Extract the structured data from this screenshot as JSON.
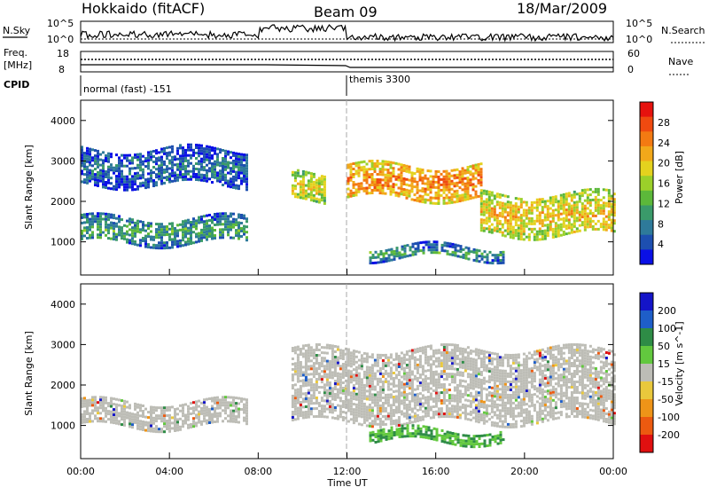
{
  "header": {
    "station": "Hokkaido (fitACF)",
    "beam": "Beam 09",
    "date": "18/Mar/2009"
  },
  "noise_panel": {
    "left_label": "N.Sky",
    "right_label": "N.Search",
    "left_ticks": [
      "10^5",
      "10^0"
    ],
    "right_ticks": [
      "10^5",
      "10^0"
    ]
  },
  "freq_panel": {
    "left_label_line1": "Freq.",
    "left_label_line2": "[MHz]",
    "right_label": "Nave",
    "left_ticks": [
      "18",
      "8"
    ],
    "right_ticks": [
      "60",
      "0"
    ]
  },
  "cpid": {
    "label": "CPID",
    "segments": [
      {
        "name": "normal (fast) -151",
        "start_hour": 0,
        "end_hour": 12
      },
      {
        "name": "themis 3300",
        "start_hour": 12,
        "end_hour": 24
      }
    ]
  },
  "x_axis": {
    "label": "Time UT",
    "ticks": [
      "00:00",
      "04:00",
      "08:00",
      "12:00",
      "16:00",
      "20:00",
      "00:00"
    ]
  },
  "colors": {
    "power_scale": [
      "#0a10e6",
      "#1d4fb0",
      "#2e7a9a",
      "#3a9a6a",
      "#5cb83a",
      "#9bd02a",
      "#e4d21e",
      "#f2a81a",
      "#f37a12",
      "#ef4a10",
      "#e6120e"
    ],
    "velocity_scale": [
      "#1414c8",
      "#1e5ec8",
      "#2e8c46",
      "#62c83e",
      "#bdbdb6",
      "#e9c83c",
      "#ee9418",
      "#ec5a10",
      "#e01010"
    ]
  },
  "chart_data": [
    {
      "type": "heatmap",
      "title": "Power",
      "ylabel": "Slant Range [km]",
      "xlabel": "Time UT",
      "x_range_hours": [
        0,
        24
      ],
      "ylim": [
        180,
        4500
      ],
      "yticks": [
        1000,
        2000,
        3000,
        4000
      ],
      "colorbar": {
        "label": "Power [dB]",
        "ticks": [
          4,
          8,
          12,
          16,
          20,
          24,
          28
        ],
        "range": [
          0,
          30
        ]
      },
      "echo_regions": [
        {
          "start_hour": 0.0,
          "end_hour": 7.5,
          "range_km_low": 1000,
          "range_km_high": 1600,
          "power_db": 10
        },
        {
          "start_hour": 0.0,
          "end_hour": 7.5,
          "range_km_low": 2400,
          "range_km_high": 3300,
          "power_db": 6
        },
        {
          "start_hour": 9.5,
          "end_hour": 11.0,
          "range_km_low": 2000,
          "range_km_high": 2700,
          "power_db": 18
        },
        {
          "start_hour": 12.0,
          "end_hour": 18.0,
          "range_km_low": 2100,
          "range_km_high": 2900,
          "power_db": 24
        },
        {
          "start_hour": 18.0,
          "end_hour": 24.0,
          "range_km_low": 1200,
          "range_km_high": 2200,
          "power_db": 20
        },
        {
          "start_hour": 13.0,
          "end_hour": 19.0,
          "range_km_low": 600,
          "range_km_high": 900,
          "power_db": 10
        }
      ]
    },
    {
      "type": "heatmap",
      "title": "Velocity",
      "ylabel": "Slant Range [km]",
      "xlabel": "Time UT",
      "x_range_hours": [
        0,
        24
      ],
      "ylim": [
        180,
        4500
      ],
      "yticks": [
        1000,
        2000,
        3000,
        4000
      ],
      "colorbar": {
        "label": "Velocity [m s^-1]",
        "ticks": [
          200,
          100,
          50,
          15,
          -15,
          -50,
          -100,
          -200
        ]
      },
      "echo_regions": [
        {
          "start_hour": 0.0,
          "end_hour": 7.5,
          "range_km_low": 1000,
          "range_km_high": 1600,
          "velocity_ms": 0
        },
        {
          "start_hour": 9.5,
          "end_hour": 24.0,
          "range_km_low": 1100,
          "range_km_high": 2900,
          "velocity_ms": 0
        },
        {
          "start_hour": 13.0,
          "end_hour": 19.0,
          "range_km_low": 600,
          "range_km_high": 900,
          "velocity_ms": 60
        }
      ]
    }
  ]
}
